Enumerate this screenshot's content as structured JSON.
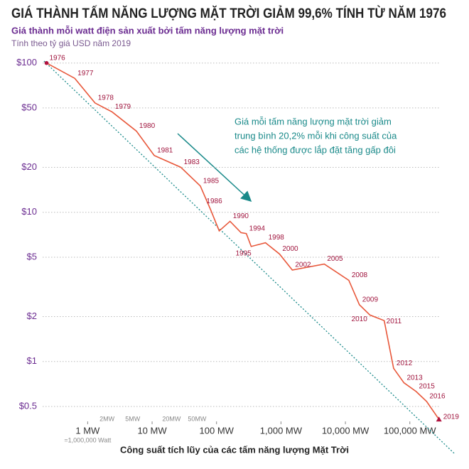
{
  "chart_data": {
    "type": "line",
    "title": "GIÁ THÀNH TẤM NĂNG LƯỢNG MẶT TRỜI GIẢM 99,6% TÍNH TỪ NĂM 1976",
    "subtitle": "Giá thành mỗi watt điện sản xuất bởi tấm năng lượng mặt trời",
    "note": "Tính theo tỷ giá USD năm 2019",
    "x_label": "Công suất tích lũy của các tấm năng lượng Mặt Trời",
    "x_note": "=1,000,000 Watt",
    "annotation": [
      "Giá mỗi tấm năng lượng mặt trời giảm",
      "trung bình 20,2% mỗi khi công suất của",
      "các hệ thống được lắp đặt tăng gấp đôi"
    ],
    "log_x": true,
    "log_y": true,
    "grid": true,
    "xlim": [
      0.2,
      300000
    ],
    "ylim": [
      0.38,
      110
    ],
    "xticks": [
      {
        "value": 1,
        "label": "1 MW"
      },
      {
        "value": 10,
        "label": "10 MW"
      },
      {
        "value": 100,
        "label": "100 MW"
      },
      {
        "value": 1000,
        "label": "1,000 MW"
      },
      {
        "value": 10000,
        "label": "10,000 MW"
      },
      {
        "value": 100000,
        "label": "100,000 MW"
      }
    ],
    "minor_xticks": [
      {
        "value": 2,
        "label": "2MW"
      },
      {
        "value": 5,
        "label": "5MW"
      },
      {
        "value": 20,
        "label": "20MW"
      },
      {
        "value": 50,
        "label": "50MW"
      }
    ],
    "yticks": [
      {
        "value": 100,
        "label": "$100"
      },
      {
        "value": 50,
        "label": "$50"
      },
      {
        "value": 20,
        "label": "$20"
      },
      {
        "value": 10,
        "label": "$10"
      },
      {
        "value": 5,
        "label": "$5"
      },
      {
        "value": 2,
        "label": "$2"
      },
      {
        "value": 1,
        "label": "$1"
      },
      {
        "value": 0.5,
        "label": "$0.5"
      }
    ],
    "color": "#e8573a",
    "x": [
      0.23,
      0.63,
      1.3,
      2.4,
      5.7,
      10.8,
      28,
      56,
      81,
      110,
      162,
      240,
      290,
      345,
      575,
      950,
      1500,
      4700,
      11300,
      16500,
      24000,
      40000,
      56000,
      81000,
      125000,
      182000,
      283000
    ],
    "values": [
      100,
      79,
      54,
      47,
      35,
      24,
      20,
      15,
      10.4,
      7.5,
      8.7,
      7.3,
      7.2,
      5.9,
      6.25,
      5.25,
      4.1,
      4.5,
      3.5,
      2.4,
      2.05,
      1.88,
      0.9,
      0.72,
      0.63,
      0.54,
      0.41
    ],
    "point_labels": [
      "1976",
      "1977",
      "1978",
      "1979",
      "1980",
      "1981",
      "1983",
      "1985",
      "1986",
      null,
      "1990",
      null,
      "1994",
      "1995",
      "1998",
      "2000",
      "2002",
      "2005",
      "2008",
      "2009",
      "2010",
      "2011",
      "2012",
      "2013",
      "2015",
      "2016",
      "2019"
    ],
    "trend": {
      "color": "#1a8a8a",
      "x": [
        0.21,
        500000
      ],
      "values": [
        103,
        0.24
      ]
    }
  }
}
